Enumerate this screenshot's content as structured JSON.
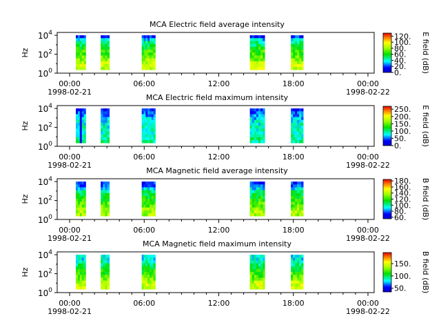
{
  "chart_data": [
    {
      "type": "heatmap",
      "title": "MCA  Electric field average intensity",
      "ylabel": "Hz",
      "y_ticks": [
        "10^0",
        "10^2",
        "10^4"
      ],
      "ylim": [
        "10^0",
        "10^4.3"
      ],
      "x_ticks": [
        "00:00",
        "06:00",
        "12:00",
        "18:00",
        "00:00"
      ],
      "x_dates": [
        "1998-02-21",
        "1998-02-22"
      ],
      "xlim": [
        "1998-02-20T23:00",
        "1998-02-22T00:30"
      ],
      "colorbar": {
        "label": "E field (dB)",
        "ticks": [
          "0.",
          "20.",
          "40.",
          "60.",
          "80.",
          "100.",
          "120."
        ],
        "range": [
          0,
          130
        ]
      },
      "data_segments_hours": [
        [
          0.5,
          1.3
        ],
        [
          2.5,
          3.2
        ],
        [
          5.8,
          6.9
        ],
        [
          14.5,
          15.7
        ],
        [
          17.8,
          18.8
        ]
      ]
    },
    {
      "type": "heatmap",
      "title": "MCA  Electric field maximum intensity",
      "ylabel": "Hz",
      "y_ticks": [
        "10^0",
        "10^2",
        "10^4"
      ],
      "ylim": [
        "10^0",
        "10^4.3"
      ],
      "x_ticks": [
        "00:00",
        "06:00",
        "12:00",
        "18:00",
        "00:00"
      ],
      "x_dates": [
        "1998-02-21",
        "1998-02-22"
      ],
      "xlim": [
        "1998-02-20T23:00",
        "1998-02-22T00:30"
      ],
      "colorbar": {
        "label": "E field (dB)",
        "ticks": [
          "0.",
          "50.",
          "100.",
          "150.",
          "200.",
          "250."
        ],
        "range": [
          0,
          270
        ]
      },
      "data_segments_hours": [
        [
          0.5,
          1.3
        ],
        [
          2.5,
          3.2
        ],
        [
          5.8,
          6.9
        ],
        [
          14.5,
          15.7
        ],
        [
          17.8,
          18.8
        ]
      ]
    },
    {
      "type": "heatmap",
      "title": "MCA  Magnetic field average intensity",
      "ylabel": "Hz",
      "y_ticks": [
        "10^0",
        "10^2",
        "10^4"
      ],
      "ylim": [
        "10^0",
        "10^4.3"
      ],
      "x_ticks": [
        "00:00",
        "06:00",
        "12:00",
        "18:00",
        "00:00"
      ],
      "x_dates": [
        "1998-02-21",
        "1998-02-22"
      ],
      "xlim": [
        "1998-02-20T23:00",
        "1998-02-22T00:30"
      ],
      "colorbar": {
        "label": "B field (dB)",
        "ticks": [
          "60.",
          "80.",
          "100.",
          "120.",
          "140.",
          "160.",
          "180."
        ],
        "range": [
          55,
          185
        ]
      },
      "data_segments_hours": [
        [
          0.5,
          1.3
        ],
        [
          2.5,
          3.2
        ],
        [
          5.8,
          6.9
        ],
        [
          14.5,
          15.7
        ],
        [
          17.8,
          18.8
        ]
      ]
    },
    {
      "type": "heatmap",
      "title": "MCA  Magnetic field maximum intensity",
      "ylabel": "Hz",
      "y_ticks": [
        "10^0",
        "10^2",
        "10^4"
      ],
      "ylim": [
        "10^0",
        "10^4.3"
      ],
      "x_ticks": [
        "00:00",
        "06:00",
        "12:00",
        "18:00",
        "00:00"
      ],
      "x_dates": [
        "1998-02-21",
        "1998-02-22"
      ],
      "xlim": [
        "1998-02-20T23:00",
        "1998-02-22T00:30"
      ],
      "colorbar": {
        "label": "B field (dB)",
        "ticks": [
          "50.",
          "100.",
          "150."
        ],
        "range": [
          35,
          195
        ]
      },
      "data_segments_hours": [
        [
          0.5,
          1.3
        ],
        [
          2.5,
          3.2
        ],
        [
          5.8,
          6.9
        ],
        [
          14.5,
          15.7
        ],
        [
          17.8,
          18.8
        ]
      ]
    }
  ]
}
